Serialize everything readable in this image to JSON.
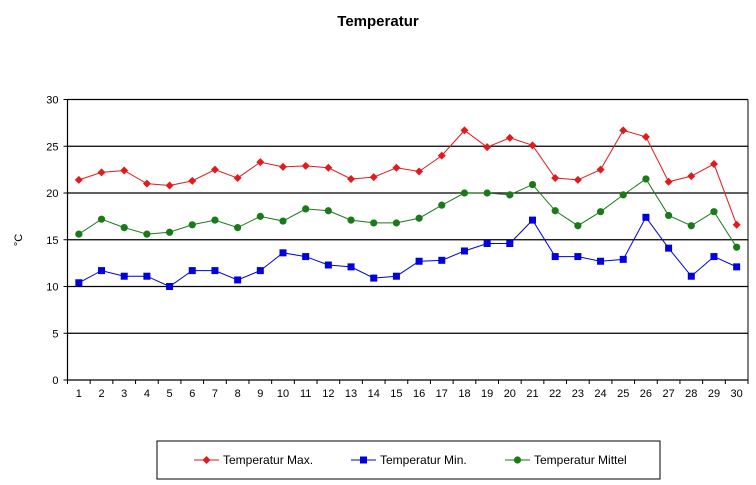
{
  "chart_data": {
    "type": "line",
    "title": "Temperatur",
    "xlabel": "",
    "ylabel": "°C",
    "ylim": [
      0,
      30
    ],
    "yticks": [
      0,
      5,
      10,
      15,
      20,
      25,
      30
    ],
    "grid": true,
    "legend_position": "bottom",
    "categories": [
      "1",
      "2",
      "3",
      "4",
      "5",
      "6",
      "7",
      "8",
      "9",
      "10",
      "11",
      "12",
      "13",
      "14",
      "15",
      "16",
      "17",
      "18",
      "19",
      "20",
      "21",
      "22",
      "23",
      "24",
      "25",
      "26",
      "27",
      "28",
      "29",
      "30"
    ],
    "series": [
      {
        "name": "Temperatur Max.",
        "color": "#e31a1c",
        "marker": "diamond",
        "values": [
          21.4,
          22.2,
          22.4,
          21.0,
          20.8,
          21.3,
          22.5,
          21.6,
          23.3,
          22.8,
          22.9,
          22.7,
          21.5,
          21.7,
          22.7,
          22.3,
          24.0,
          26.7,
          24.9,
          25.9,
          25.1,
          21.6,
          21.4,
          22.5,
          26.7,
          26.0,
          21.2,
          21.8,
          23.1,
          16.6
        ]
      },
      {
        "name": "Temperatur Min.",
        "color": "#0000e0",
        "marker": "square",
        "values": [
          10.4,
          11.7,
          11.1,
          11.1,
          10.0,
          11.7,
          11.7,
          10.7,
          11.7,
          13.6,
          13.2,
          12.3,
          12.1,
          10.9,
          11.1,
          12.7,
          12.8,
          13.8,
          14.6,
          14.6,
          17.1,
          13.2,
          13.2,
          12.7,
          12.9,
          17.4,
          14.1,
          11.1,
          13.2,
          12.1
        ]
      },
      {
        "name": "Temperatur Mittel",
        "color": "#1a7a1a",
        "marker": "circle",
        "values": [
          15.6,
          17.2,
          16.3,
          15.6,
          15.8,
          16.6,
          17.1,
          16.3,
          17.5,
          17.0,
          18.3,
          18.1,
          17.1,
          16.8,
          16.8,
          17.3,
          18.7,
          20.0,
          20.0,
          19.8,
          20.9,
          18.1,
          16.5,
          18.0,
          19.8,
          21.5,
          17.6,
          16.5,
          18.0,
          14.2
        ]
      }
    ]
  }
}
